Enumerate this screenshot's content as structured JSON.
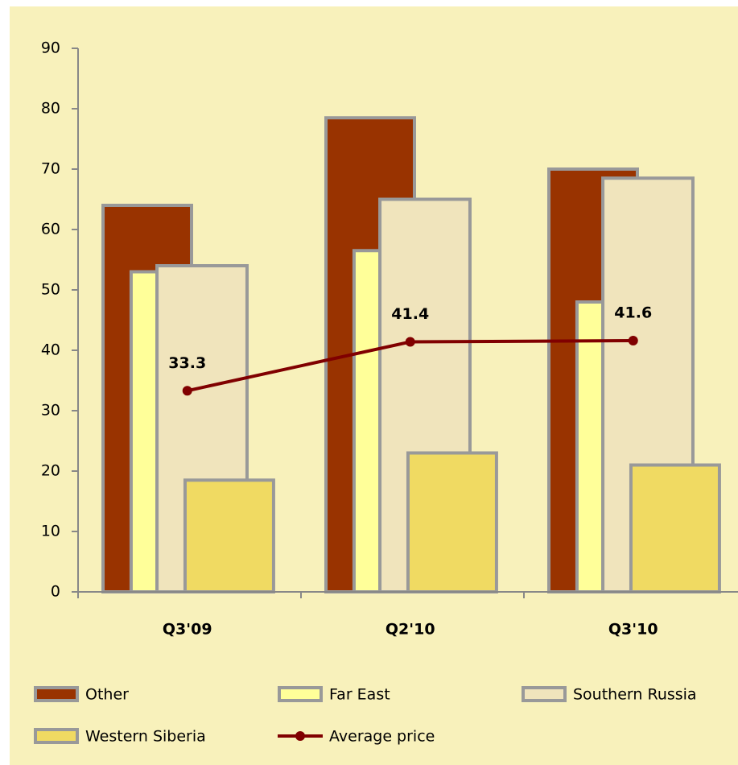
{
  "chart_data": {
    "type": "bar",
    "categories": [
      "Q3'09",
      "Q2'10",
      "Q3'10"
    ],
    "series": [
      {
        "name": "Other",
        "color": "#993300",
        "values": [
          64,
          78.5,
          70
        ]
      },
      {
        "name": "Far East",
        "color": "#ffff99",
        "values": [
          53,
          56.5,
          48
        ]
      },
      {
        "name": "Southern Russia",
        "color": "#f0e4bc",
        "values": [
          54,
          65,
          68.5
        ]
      },
      {
        "name": "Western Siberia",
        "color": "#f0da62",
        "values": [
          18.5,
          23,
          21
        ]
      },
      {
        "name": "Average price",
        "type": "line",
        "color": "#800000",
        "values": [
          33.3,
          41.4,
          41.6
        ]
      }
    ],
    "ylim": [
      0,
      90
    ],
    "yticks": [
      0,
      10,
      20,
      30,
      40,
      50,
      60,
      70,
      80,
      90
    ],
    "legend": "bottom"
  }
}
